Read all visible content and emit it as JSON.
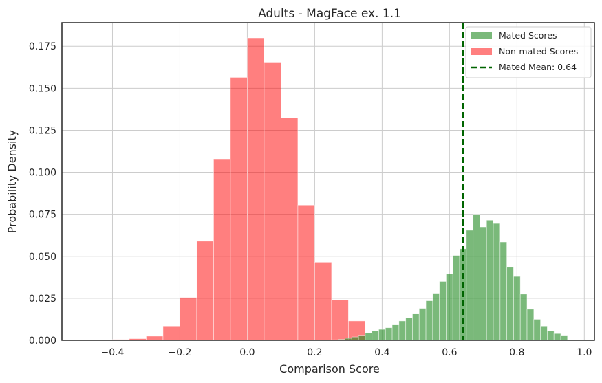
{
  "chart_data": {
    "type": "bar",
    "title": "Adults - MagFace ex. 1.1",
    "xlabel": "Comparison Score",
    "ylabel": "Probability Density",
    "xlim": [
      -0.55,
      1.03
    ],
    "ylim": [
      0,
      0.189
    ],
    "xticks": [
      -0.4,
      -0.2,
      0.0,
      0.2,
      0.4,
      0.6,
      0.8,
      1.0
    ],
    "xtick_labels": [
      "−0.4",
      "−0.2",
      "0.0",
      "0.2",
      "0.4",
      "0.6",
      "0.8",
      "1.0"
    ],
    "yticks": [
      0.0,
      0.025,
      0.05,
      0.075,
      0.1,
      0.125,
      0.15,
      0.175
    ],
    "ytick_labels": [
      "0.000",
      "0.025",
      "0.050",
      "0.075",
      "0.100",
      "0.125",
      "0.150",
      "0.175"
    ],
    "grid": true,
    "legend_position": "top-right",
    "series": [
      {
        "name": "Non-mated Scores",
        "color": "#ff0000",
        "opacity": 0.5,
        "bin_edges": [
          -0.5,
          -0.45,
          -0.4,
          -0.35,
          -0.3,
          -0.25,
          -0.2,
          -0.15,
          -0.1,
          -0.05,
          0.0,
          0.05,
          0.1,
          0.15,
          0.2,
          0.25,
          0.3,
          0.35
        ],
        "values": [
          0.0002,
          0.0003,
          0.0005,
          0.001,
          0.0025,
          0.0085,
          0.0255,
          0.059,
          0.108,
          0.1565,
          0.18,
          0.1655,
          0.1325,
          0.0805,
          0.0465,
          0.024,
          0.0115,
          0.0055
        ]
      },
      {
        "name": "Mated Scores",
        "color": "#228b22",
        "opacity": 0.6,
        "bin_edges": [
          0.25,
          0.27,
          0.29,
          0.31,
          0.33,
          0.35,
          0.37,
          0.39,
          0.41,
          0.43,
          0.45,
          0.47,
          0.49,
          0.51,
          0.53,
          0.55,
          0.57,
          0.59,
          0.61,
          0.63,
          0.65,
          0.67,
          0.69,
          0.71,
          0.73,
          0.75,
          0.77,
          0.79,
          0.81,
          0.83,
          0.85,
          0.87,
          0.89,
          0.91,
          0.93,
          0.95
        ],
        "values": [
          0.0003,
          0.0006,
          0.0012,
          0.002,
          0.003,
          0.0045,
          0.0055,
          0.0065,
          0.0075,
          0.0095,
          0.0115,
          0.0135,
          0.016,
          0.019,
          0.0235,
          0.028,
          0.035,
          0.0395,
          0.0505,
          0.0545,
          0.0655,
          0.075,
          0.0675,
          0.0715,
          0.0695,
          0.0585,
          0.0435,
          0.038,
          0.0275,
          0.0185,
          0.0125,
          0.0085,
          0.0055,
          0.004,
          0.003
        ]
      }
    ],
    "reference_lines": [
      {
        "name": "Mated Mean: 0.64",
        "x": 0.64,
        "color": "#006400",
        "style": "dashed"
      }
    ]
  }
}
